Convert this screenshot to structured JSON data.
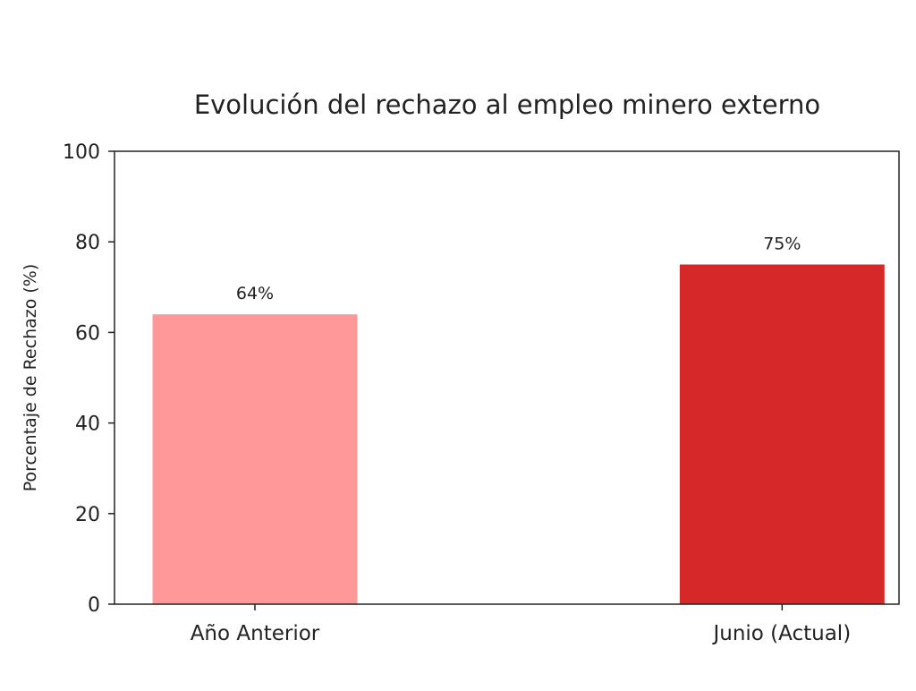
{
  "chart_data": {
    "type": "bar",
    "title": "Evolución del rechazo al empleo minero externo",
    "xlabel": "",
    "ylabel": "Porcentaje de Rechazo (%)",
    "ylim": [
      0,
      100
    ],
    "yticks": [
      0,
      20,
      40,
      60,
      80,
      100
    ],
    "ytick_labels": [
      "0",
      "20",
      "40",
      "60",
      "80",
      "100"
    ],
    "categories": [
      "Año Anterior",
      "Junio (Actual)"
    ],
    "values": [
      64,
      75
    ],
    "value_labels": [
      "64%",
      "75%"
    ],
    "colors": [
      "#ff9999",
      "#d62828"
    ],
    "grid": false,
    "legend": "none"
  }
}
